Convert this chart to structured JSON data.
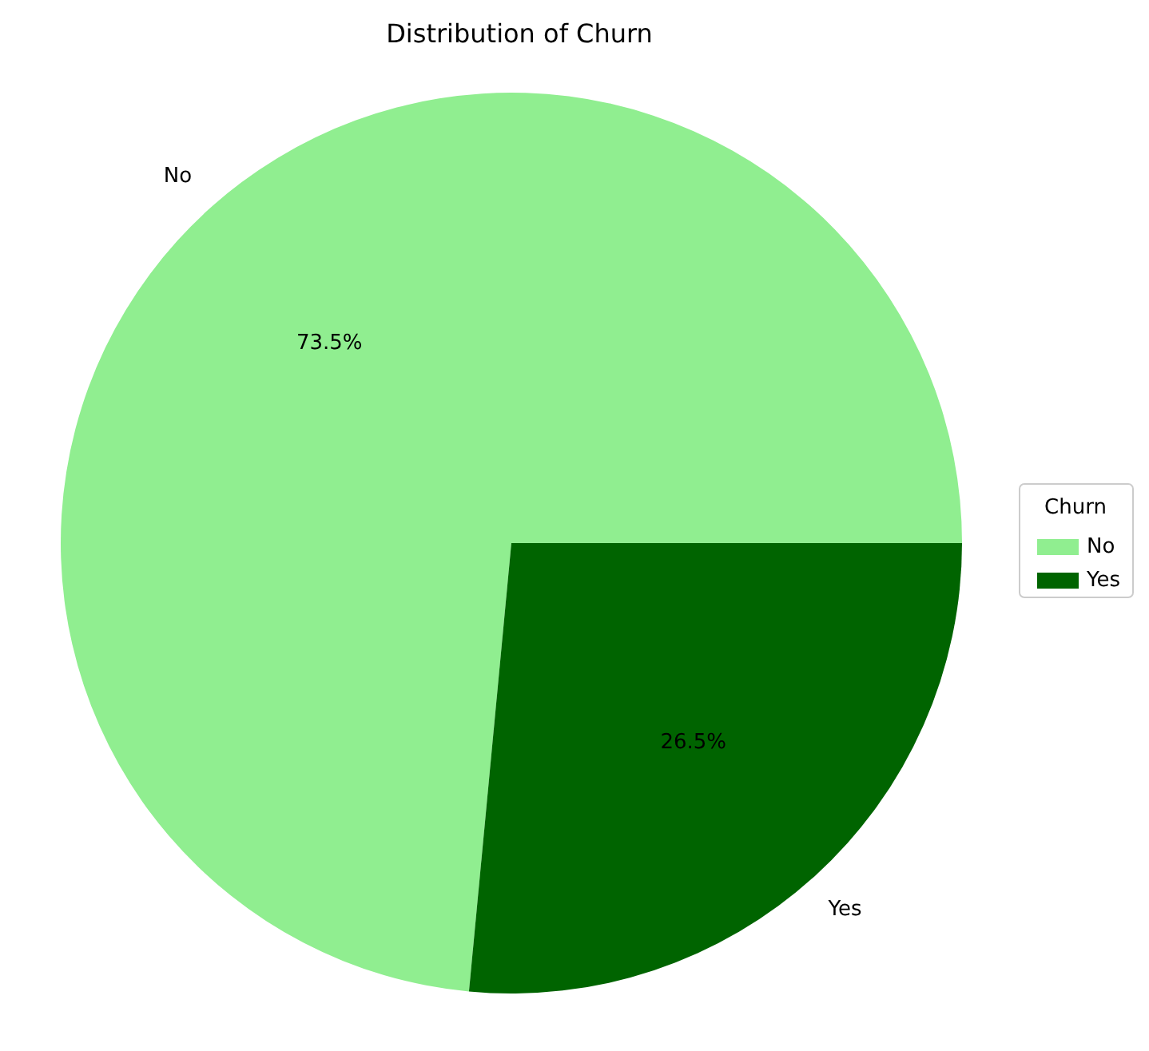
{
  "chart_data": {
    "type": "pie",
    "title": "Distribution of Churn",
    "legend_title": "Churn",
    "categories": [
      "No",
      "Yes"
    ],
    "values": [
      73.5,
      26.5
    ],
    "colors": [
      "#90ee90",
      "#006400"
    ],
    "value_labels": [
      "73.5%",
      "26.5%"
    ],
    "legend": "right"
  }
}
